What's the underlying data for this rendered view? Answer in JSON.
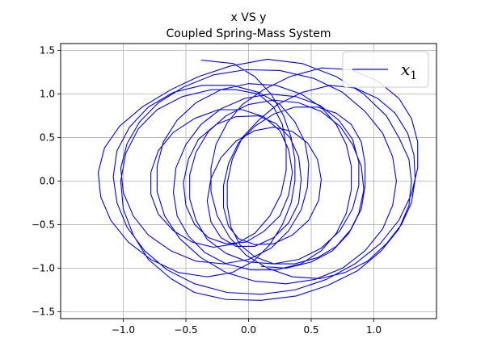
{
  "chart_data": {
    "type": "line",
    "title": "x VS y",
    "subtitle": "Coupled Spring-Mass System",
    "xlabel": "",
    "ylabel": "",
    "xlim": [
      -1.5,
      1.5
    ],
    "ylim": [
      -1.58,
      1.58
    ],
    "xticks": [
      -1.0,
      -0.5,
      0.0,
      0.5,
      1.0
    ],
    "xtick_labels": [
      "−1.0",
      "−0.5",
      "0.0",
      "0.5",
      "1.0"
    ],
    "yticks": [
      -1.5,
      -1.0,
      -0.5,
      0.0,
      0.5,
      1.0,
      1.5
    ],
    "ytick_labels": [
      "−1.5",
      "−1.0",
      "−0.5",
      "0.0",
      "0.5",
      "1.0",
      "1.5"
    ],
    "grid": true,
    "legend": {
      "position": "top-right"
    },
    "series": [
      {
        "name": "x",
        "name_subscript": "1",
        "color": "#0000ff",
        "points": [
          [
            -0.38,
            1.39
          ],
          [
            -0.12,
            1.35
          ],
          [
            0.05,
            1.2
          ],
          [
            0.18,
            1.0
          ],
          [
            0.28,
            0.75
          ],
          [
            0.34,
            0.5
          ],
          [
            0.37,
            0.25
          ],
          [
            0.37,
            0.0
          ],
          [
            0.34,
            -0.25
          ],
          [
            0.27,
            -0.5
          ],
          [
            0.17,
            -0.73
          ],
          [
            0.04,
            -0.92
          ],
          [
            -0.13,
            -1.05
          ],
          [
            -0.33,
            -1.1
          ],
          [
            -0.56,
            -1.05
          ],
          [
            -0.78,
            -0.9
          ],
          [
            -0.96,
            -0.7
          ],
          [
            -1.1,
            -0.45
          ],
          [
            -1.18,
            -0.18
          ],
          [
            -1.2,
            0.1
          ],
          [
            -1.15,
            0.38
          ],
          [
            -1.03,
            0.63
          ],
          [
            -0.85,
            0.85
          ],
          [
            -0.62,
            1.05
          ],
          [
            -0.4,
            1.2
          ],
          [
            -0.15,
            1.32
          ],
          [
            0.15,
            1.4
          ],
          [
            0.43,
            1.35
          ],
          [
            0.7,
            1.2
          ],
          [
            0.92,
            1.0
          ],
          [
            1.1,
            0.75
          ],
          [
            1.2,
            0.5
          ],
          [
            1.28,
            0.25
          ],
          [
            1.3,
            0.0
          ],
          [
            1.28,
            -0.28
          ],
          [
            1.2,
            -0.55
          ],
          [
            1.06,
            -0.8
          ],
          [
            0.87,
            -1.03
          ],
          [
            0.63,
            -1.2
          ],
          [
            0.38,
            -1.32
          ],
          [
            0.1,
            -1.37
          ],
          [
            -0.18,
            -1.36
          ],
          [
            -0.43,
            -1.28
          ],
          [
            -0.62,
            -1.12
          ],
          [
            -0.8,
            -0.9
          ],
          [
            -0.92,
            -0.62
          ],
          [
            -1.0,
            -0.32
          ],
          [
            -1.02,
            0.0
          ],
          [
            -0.98,
            0.32
          ],
          [
            -0.88,
            0.6
          ],
          [
            -0.73,
            0.82
          ],
          [
            -0.53,
            0.97
          ],
          [
            -0.3,
            1.05
          ],
          [
            -0.1,
            1.05
          ],
          [
            0.08,
            1.0
          ],
          [
            0.2,
            0.85
          ],
          [
            0.27,
            0.65
          ],
          [
            0.3,
            0.4
          ],
          [
            0.3,
            0.12
          ],
          [
            0.26,
            -0.15
          ],
          [
            0.17,
            -0.4
          ],
          [
            0.05,
            -0.6
          ],
          [
            -0.1,
            -0.72
          ],
          [
            -0.28,
            -0.76
          ],
          [
            -0.45,
            -0.7
          ],
          [
            -0.6,
            -0.57
          ],
          [
            -0.72,
            -0.38
          ],
          [
            -0.78,
            -0.15
          ],
          [
            -0.78,
            0.1
          ],
          [
            -0.72,
            0.35
          ],
          [
            -0.6,
            0.56
          ],
          [
            -0.43,
            0.72
          ],
          [
            -0.24,
            0.82
          ],
          [
            -0.05,
            0.82
          ],
          [
            0.12,
            0.74
          ],
          [
            0.25,
            0.58
          ],
          [
            0.32,
            0.36
          ],
          [
            0.35,
            0.1
          ],
          [
            0.32,
            -0.16
          ],
          [
            0.25,
            -0.4
          ],
          [
            0.12,
            -0.58
          ],
          [
            -0.02,
            -0.7
          ],
          [
            -0.18,
            -0.72
          ],
          [
            -0.32,
            -0.65
          ],
          [
            -0.43,
            -0.5
          ],
          [
            -0.5,
            -0.28
          ],
          [
            -0.52,
            -0.02
          ],
          [
            -0.48,
            0.25
          ],
          [
            -0.4,
            0.48
          ],
          [
            -0.26,
            0.65
          ],
          [
            -0.1,
            0.74
          ],
          [
            0.08,
            0.75
          ],
          [
            0.22,
            0.66
          ],
          [
            0.33,
            0.5
          ],
          [
            0.4,
            0.28
          ],
          [
            0.42,
            0.02
          ],
          [
            0.4,
            -0.25
          ],
          [
            0.32,
            -0.48
          ],
          [
            0.2,
            -0.65
          ],
          [
            0.05,
            -0.75
          ],
          [
            -0.1,
            -0.75
          ],
          [
            -0.22,
            -0.65
          ],
          [
            -0.3,
            -0.47
          ],
          [
            -0.33,
            -0.23
          ],
          [
            -0.3,
            0.03
          ],
          [
            -0.22,
            0.27
          ],
          [
            -0.1,
            0.46
          ],
          [
            0.05,
            0.58
          ],
          [
            0.2,
            0.62
          ],
          [
            0.35,
            0.57
          ],
          [
            0.47,
            0.44
          ],
          [
            0.55,
            0.25
          ],
          [
            0.58,
            0.02
          ],
          [
            0.56,
            -0.22
          ],
          [
            0.48,
            -0.45
          ],
          [
            0.35,
            -0.62
          ],
          [
            0.2,
            -0.72
          ],
          [
            0.05,
            -0.73
          ],
          [
            -0.08,
            -0.66
          ],
          [
            -0.16,
            -0.52
          ],
          [
            -0.2,
            -0.3
          ],
          [
            -0.2,
            -0.05
          ],
          [
            -0.16,
            0.2
          ],
          [
            -0.08,
            0.44
          ],
          [
            0.05,
            0.63
          ],
          [
            0.2,
            0.77
          ],
          [
            0.37,
            0.85
          ],
          [
            0.55,
            0.85
          ],
          [
            0.7,
            0.78
          ],
          [
            0.82,
            0.65
          ],
          [
            0.9,
            0.45
          ],
          [
            0.93,
            0.2
          ],
          [
            0.93,
            -0.05
          ],
          [
            0.9,
            -0.32
          ],
          [
            0.82,
            -0.55
          ],
          [
            0.7,
            -0.75
          ],
          [
            0.55,
            -0.88
          ],
          [
            0.37,
            -0.95
          ],
          [
            0.2,
            -0.95
          ],
          [
            0.05,
            -0.87
          ],
          [
            -0.07,
            -0.73
          ],
          [
            -0.14,
            -0.53
          ],
          [
            -0.17,
            -0.28
          ],
          [
            -0.17,
            -0.02
          ],
          [
            -0.13,
            0.25
          ],
          [
            -0.05,
            0.5
          ],
          [
            0.08,
            0.7
          ],
          [
            0.23,
            0.88
          ],
          [
            0.43,
            1.02
          ],
          [
            0.65,
            1.1
          ],
          [
            0.85,
            1.07
          ],
          [
            1.03,
            0.95
          ],
          [
            1.17,
            0.78
          ],
          [
            1.27,
            0.55
          ],
          [
            1.32,
            0.3
          ],
          [
            1.33,
            0.02
          ],
          [
            1.3,
            -0.25
          ],
          [
            1.22,
            -0.5
          ],
          [
            1.1,
            -0.72
          ],
          [
            0.95,
            -0.92
          ],
          [
            0.77,
            -1.05
          ],
          [
            0.57,
            -1.12
          ],
          [
            0.35,
            -1.1
          ],
          [
            0.15,
            -1.0
          ],
          [
            -0.02,
            -0.85
          ],
          [
            -0.15,
            -0.65
          ],
          [
            -0.25,
            -0.4
          ],
          [
            -0.3,
            -0.12
          ],
          [
            -0.3,
            0.15
          ],
          [
            -0.26,
            0.42
          ],
          [
            -0.17,
            0.67
          ],
          [
            -0.05,
            0.88
          ],
          [
            0.12,
            1.05
          ],
          [
            0.33,
            1.2
          ],
          [
            0.58,
            1.3
          ],
          [
            0.82,
            1.28
          ],
          [
            1.03,
            1.15
          ],
          [
            1.2,
            0.95
          ],
          [
            1.3,
            0.72
          ],
          [
            1.35,
            0.45
          ],
          [
            1.35,
            0.15
          ],
          [
            1.3,
            -0.15
          ],
          [
            1.2,
            -0.45
          ],
          [
            1.05,
            -0.72
          ],
          [
            0.85,
            -0.95
          ],
          [
            0.62,
            -1.13
          ],
          [
            0.37,
            -1.25
          ],
          [
            0.1,
            -1.3
          ],
          [
            -0.17,
            -1.28
          ],
          [
            -0.43,
            -1.18
          ],
          [
            -0.65,
            -1.02
          ],
          [
            -0.83,
            -0.8
          ],
          [
            -0.97,
            -0.53
          ],
          [
            -1.05,
            -0.25
          ],
          [
            -1.08,
            0.05
          ],
          [
            -1.05,
            0.35
          ],
          [
            -0.95,
            0.62
          ],
          [
            -0.8,
            0.85
          ],
          [
            -0.6,
            1.02
          ],
          [
            -0.37,
            1.1
          ],
          [
            -0.13,
            1.1
          ],
          [
            0.08,
            1.02
          ],
          [
            0.25,
            0.88
          ],
          [
            0.37,
            0.68
          ],
          [
            0.45,
            0.45
          ],
          [
            0.48,
            0.2
          ],
          [
            0.47,
            -0.07
          ],
          [
            0.42,
            -0.33
          ],
          [
            0.32,
            -0.57
          ],
          [
            0.18,
            -0.77
          ],
          [
            0.0,
            -0.9
          ],
          [
            -0.2,
            -0.95
          ],
          [
            -0.42,
            -0.92
          ],
          [
            -0.62,
            -0.8
          ],
          [
            -0.8,
            -0.62
          ],
          [
            -0.92,
            -0.4
          ],
          [
            -1.0,
            -0.13
          ],
          [
            -1.02,
            0.15
          ],
          [
            -0.97,
            0.43
          ],
          [
            -0.87,
            0.68
          ],
          [
            -0.72,
            0.9
          ],
          [
            -0.52,
            1.08
          ],
          [
            -0.28,
            1.22
          ],
          [
            -0.02,
            1.28
          ],
          [
            0.25,
            1.27
          ],
          [
            0.52,
            1.18
          ],
          [
            0.75,
            1.02
          ],
          [
            0.93,
            0.8
          ],
          [
            1.07,
            0.55
          ],
          [
            1.15,
            0.28
          ],
          [
            1.18,
            0.0
          ],
          [
            1.15,
            -0.28
          ],
          [
            1.07,
            -0.55
          ],
          [
            0.93,
            -0.8
          ],
          [
            0.75,
            -1.0
          ],
          [
            0.53,
            -1.13
          ],
          [
            0.3,
            -1.18
          ],
          [
            0.05,
            -1.15
          ],
          [
            -0.18,
            -1.05
          ],
          [
            -0.38,
            -0.88
          ],
          [
            -0.55,
            -0.66
          ],
          [
            -0.67,
            -0.4
          ],
          [
            -0.73,
            -0.12
          ],
          [
            -0.73,
            0.17
          ],
          [
            -0.68,
            0.45
          ],
          [
            -0.57,
            0.7
          ],
          [
            -0.42,
            0.9
          ],
          [
            -0.22,
            1.05
          ],
          [
            0.0,
            1.12
          ],
          [
            0.22,
            1.1
          ],
          [
            0.42,
            1.0
          ],
          [
            0.58,
            0.85
          ],
          [
            0.7,
            0.65
          ],
          [
            0.78,
            0.42
          ],
          [
            0.82,
            0.17
          ],
          [
            0.82,
            -0.1
          ],
          [
            0.78,
            -0.37
          ],
          [
            0.7,
            -0.6
          ],
          [
            0.58,
            -0.8
          ],
          [
            0.42,
            -0.95
          ],
          [
            0.22,
            -1.02
          ],
          [
            0.02,
            -1.02
          ],
          [
            -0.18,
            -0.95
          ],
          [
            -0.35,
            -0.82
          ],
          [
            -0.48,
            -0.63
          ],
          [
            -0.57,
            -0.4
          ],
          [
            -0.6,
            -0.13
          ],
          [
            -0.58,
            0.15
          ],
          [
            -0.5,
            0.42
          ],
          [
            -0.38,
            0.65
          ],
          [
            -0.22,
            0.83
          ],
          [
            -0.03,
            0.95
          ],
          [
            0.17,
            1.0
          ],
          [
            0.38,
            0.97
          ],
          [
            0.57,
            0.87
          ],
          [
            0.72,
            0.7
          ],
          [
            0.83,
            0.48
          ],
          [
            0.88,
            0.22
          ],
          [
            0.88,
            -0.05
          ],
          [
            0.83,
            -0.32
          ],
          [
            0.73,
            -0.57
          ],
          [
            0.58,
            -0.77
          ],
          [
            0.4,
            -0.9
          ],
          [
            0.2,
            -0.95
          ],
          [
            0.0,
            -0.93
          ],
          [
            -0.18,
            -0.83
          ],
          [
            -0.33,
            -0.67
          ],
          [
            -0.42,
            -0.45
          ],
          [
            -0.47,
            -0.2
          ],
          [
            -0.47,
            0.07
          ],
          [
            -0.42,
            0.33
          ],
          [
            -0.32,
            0.57
          ],
          [
            -0.18,
            0.75
          ],
          [
            0.0,
            0.88
          ],
          [
            0.2,
            0.93
          ],
          [
            0.4,
            0.9
          ],
          [
            0.58,
            0.8
          ],
          [
            0.73,
            0.63
          ],
          [
            0.83,
            0.42
          ],
          [
            0.9,
            0.17
          ],
          [
            0.92,
            -0.1
          ],
          [
            0.88,
            -0.37
          ],
          [
            0.8,
            -0.6
          ],
          [
            0.67,
            -0.8
          ],
          [
            0.5,
            -0.93
          ],
          [
            0.3,
            -1.0
          ],
          [
            0.1,
            -0.98
          ]
        ]
      }
    ]
  }
}
